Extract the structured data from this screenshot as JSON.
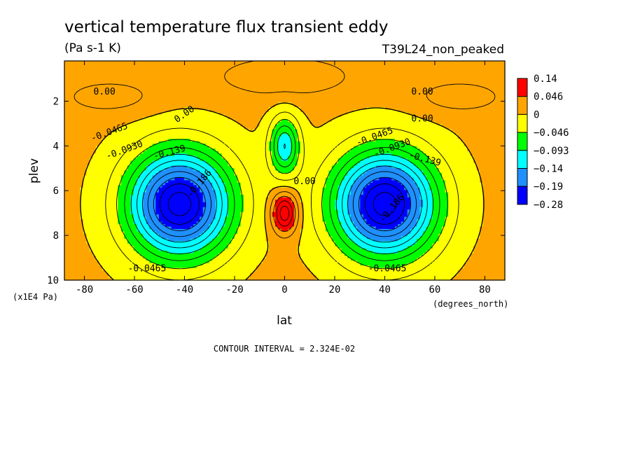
{
  "chart_data": {
    "type": "heatmap",
    "title": "vertical temperature flux transient eddy",
    "units": "(Pa s-1 K)",
    "run_label": "T39L24_non_peaked",
    "xlabel": "lat",
    "x_units": "(degrees_north)",
    "ylabel": "plev",
    "y_units": "(x1E4 Pa)",
    "xlim": [
      -88,
      88
    ],
    "ylim": [
      10,
      0.2
    ],
    "x_ticks": [
      "-80",
      "-60",
      "-40",
      "-20",
      "0",
      "20",
      "40",
      "60",
      "80"
    ],
    "y_ticks": [
      "2",
      "4",
      "6",
      "8",
      "10"
    ],
    "contour_interval_text": "CONTOUR INTERVAL = 2.324E-02",
    "contour_labels": [
      "0.00",
      "0.00",
      "0.00",
      "0.00",
      "0.00",
      "-0.0465",
      "-0.0930",
      "-0.139",
      "-0.186",
      "-0.0465",
      "-0.0465",
      "-0.0930",
      "-0.139",
      "-0.186",
      "-0.0465"
    ],
    "colorbar": {
      "labels": [
        "0.14",
        "0.046",
        "0",
        "-0.046",
        "-0.093",
        "-0.14",
        "-0.19",
        "-0.28"
      ],
      "colors": [
        "#ff0000",
        "#ffa500",
        "#ffff00",
        "#00ff00",
        "#00ffff",
        "#1e90ff",
        "#0000ff"
      ]
    },
    "field": {
      "background": 0.005,
      "features": [
        {
          "name": "southern-hemisphere-downward-flux",
          "lat": -42,
          "plev": 6.6,
          "value": -0.25
        },
        {
          "name": "northern-hemisphere-downward-flux",
          "lat": 40,
          "plev": 6.6,
          "value": -0.25
        },
        {
          "name": "equatorial-upper-minimum",
          "lat": 0,
          "plev": 4.0,
          "value": -0.12
        },
        {
          "name": "equatorial-lower-maximum",
          "lat": 0,
          "plev": 7.0,
          "value": 0.11
        },
        {
          "name": "upper-level-positive-band",
          "lat": 0,
          "plev": 1.0,
          "value": 0.03
        }
      ]
    }
  },
  "labels": {
    "xunit_note": "(x1E4 Pa)",
    "xdeg_note": "(degrees_north)"
  }
}
